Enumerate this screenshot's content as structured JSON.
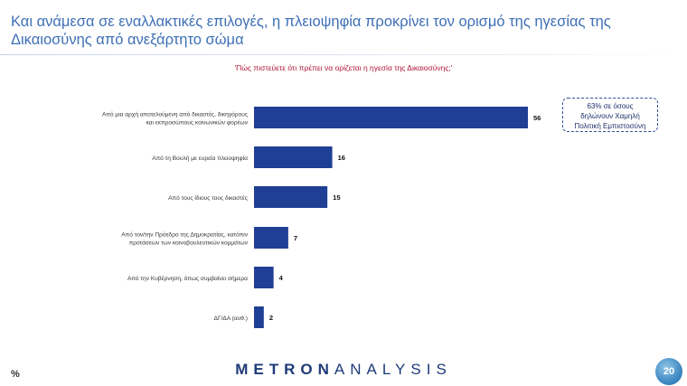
{
  "slide": {
    "title": "Και ανάμεσα σε εναλλακτικές επιλογές, η πλειοψηφία προκρίνει τον ορισμό της ηγεσίας της Δικαιοσύνης από ανεξάρτητο σώμα",
    "question": "'Πώς πιστεύετε ότι πρέπει να ορίζεται η ηγεσία της Δικαιοσύνης;'",
    "callout_lines": [
      "63% σε όσους",
      "δηλώνουν Χαμηλή",
      "Πολιτική Εμπιστοσύνη"
    ],
    "unit_label": "%",
    "logo_left": "METRON",
    "logo_right": "ANALYSIS",
    "page_number": "20"
  },
  "colors": {
    "bar": "#1f3f94",
    "title": "#3d6fb6",
    "question": "#b2153c"
  },
  "chart_data": {
    "type": "bar",
    "orientation": "horizontal",
    "categories": [
      [
        "Από μια αρχή αποτελούμενη από δικαστές, δικηγόρους",
        "και εκπροσώπους κοινωνικών φορέων"
      ],
      [
        "Από τη Βουλή με ευρεία πλειοψηφία"
      ],
      [
        "Από τους ίδιους τους δικαστές"
      ],
      [
        "Από τον/την Πρόεδρο της Δημοκρατίας, κατόπιν",
        "προτάσεων των κοινοβουλευτικών κομμάτων"
      ],
      [
        "Από την Κυβέρνηση, όπως συμβαίνει σήμερα"
      ],
      [
        "ΔΓ/ΔΑ (αυθ.)"
      ]
    ],
    "values": [
      56,
      16,
      15,
      7,
      4,
      2
    ],
    "xlim": [
      0,
      100
    ],
    "grid": false,
    "legend": "none"
  }
}
